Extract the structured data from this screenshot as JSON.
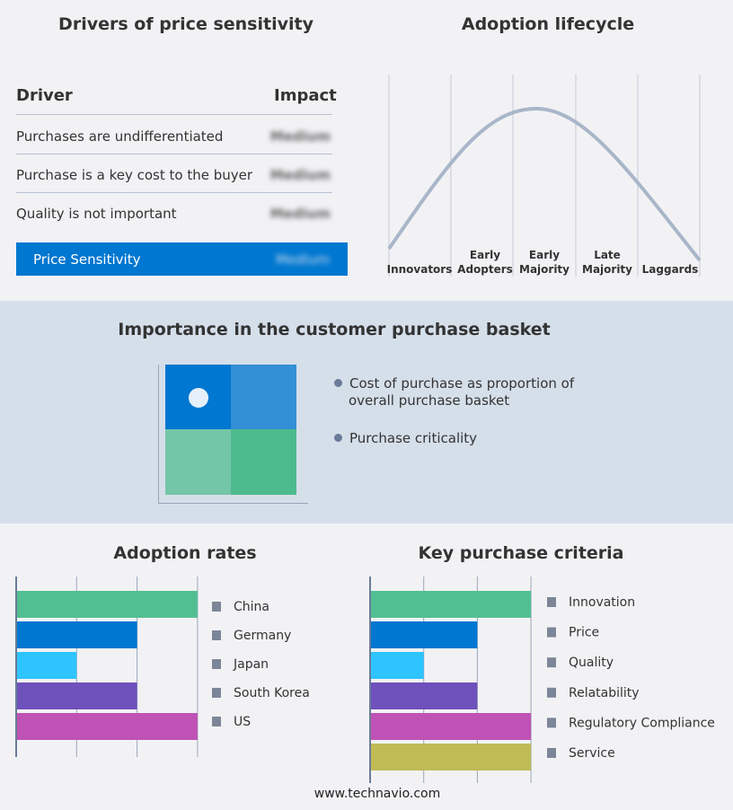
{
  "drivers": {
    "title": "Drivers of price sensitivity",
    "col_driver": "Driver",
    "col_impact": "Impact",
    "rows": [
      {
        "driver": "Purchases are undifferentiated",
        "impact": "Medium"
      },
      {
        "driver": "Purchase is a key cost to the buyer",
        "impact": "Medium"
      },
      {
        "driver": "Quality is not important",
        "impact": "Medium"
      }
    ],
    "summary": {
      "label": "Price Sensitivity",
      "impact": "Medium",
      "color": "#0077d0"
    }
  },
  "lifecycle": {
    "title": "Adoption lifecycle",
    "stages": [
      [
        "Innovators"
      ],
      [
        "Early",
        "Adopters"
      ],
      [
        "Early",
        "Majority"
      ],
      [
        "Late",
        "Majority"
      ],
      [
        "Laggards"
      ]
    ]
  },
  "basket": {
    "title": "Importance in the customer purchase basket",
    "legend": [
      "Cost of purchase as proportion of overall purchase basket",
      "Purchase criticality"
    ],
    "colors": [
      "#0077d0",
      "#338fd6",
      "#74c6a8",
      "#4dbb8d"
    ]
  },
  "footer": "www.technavio.com",
  "chart_data": [
    {
      "type": "bar",
      "title": "Adoption rates",
      "orientation": "horizontal",
      "categories": [
        "China",
        "Germany",
        "Japan",
        "South Korea",
        "US"
      ],
      "values": [
        3,
        2,
        1,
        2,
        3
      ],
      "xlim": [
        0,
        3
      ],
      "grid": true,
      "legend": "right",
      "colors": [
        "#52bf92",
        "#0077d0",
        "#2ec4ff",
        "#6f51bb",
        "#bf53b5"
      ]
    },
    {
      "type": "bar",
      "title": "Key purchase criteria",
      "orientation": "horizontal",
      "categories": [
        "Innovation",
        "Price",
        "Quality",
        "Relatability",
        "Regulatory Compliance",
        "Service"
      ],
      "values": [
        3,
        2,
        1,
        2,
        3,
        3
      ],
      "xlim": [
        0,
        3
      ],
      "grid": true,
      "legend": "right",
      "colors": [
        "#52bf92",
        "#0077d0",
        "#2ec4ff",
        "#6f51bb",
        "#bf53b5",
        "#bfbb55"
      ]
    }
  ]
}
